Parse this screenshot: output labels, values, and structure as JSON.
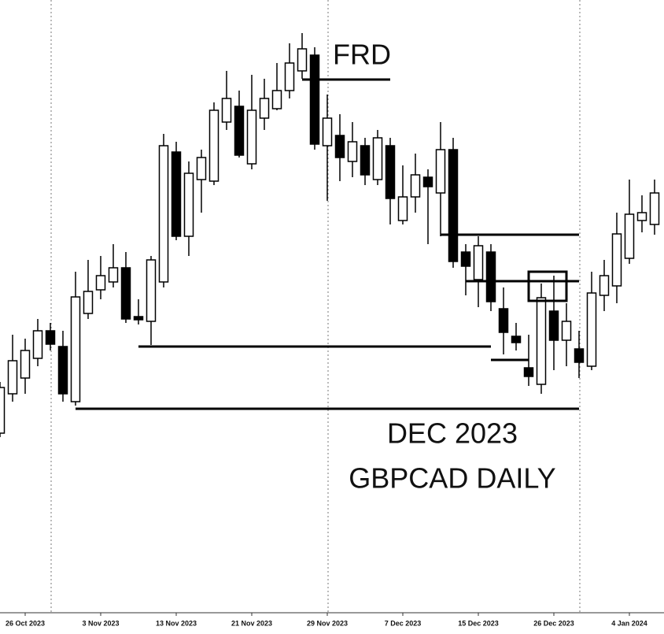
{
  "chart_data": {
    "type": "candlestick",
    "annotations": {
      "frd": "FRD",
      "month": "DEC 2023",
      "symbol": "GBPCAD DAILY"
    },
    "categories": [
      null,
      null,
      "26 Oct 2023",
      null,
      null,
      null,
      null,
      null,
      "3 Nov 2023",
      null,
      null,
      null,
      null,
      null,
      "13 Nov 2023",
      null,
      null,
      null,
      null,
      null,
      "21 Nov 2023",
      null,
      null,
      null,
      null,
      null,
      "29 Nov 2023",
      null,
      null,
      null,
      null,
      null,
      "7 Dec 2023",
      null,
      null,
      null,
      null,
      null,
      "15 Dec 2023",
      null,
      null,
      null,
      null,
      null,
      "26 Dec 2023",
      null,
      null,
      null,
      null,
      null,
      "4 Jan 2024",
      null,
      null
    ],
    "open": [
      1.675,
      1.68,
      1.682,
      1.6845,
      1.688,
      1.686,
      1.679,
      1.6902,
      1.6932,
      1.6942,
      1.696,
      1.6898,
      1.6892,
      1.6942,
      1.7107,
      1.7,
      1.7072,
      1.707,
      1.7145,
      1.7165,
      1.7092,
      1.715,
      1.7162,
      1.7185,
      1.721,
      1.723,
      1.7115,
      1.7128,
      1.7095,
      1.7115,
      1.7072,
      1.7115,
      1.702,
      1.705,
      1.7075,
      1.7055,
      1.711,
      1.698,
      1.6945,
      1.698,
      1.6908,
      1.6873,
      1.6833,
      1.6812,
      1.6905,
      1.6868,
      1.6857,
      1.6835,
      1.6925,
      1.6937,
      1.6972,
      1.702,
      1.7015
    ],
    "high": [
      1.6815,
      1.6875,
      1.687,
      1.6895,
      1.689,
      1.688,
      1.6955,
      1.697,
      1.6975,
      1.699,
      1.698,
      1.692,
      1.6975,
      1.713,
      1.712,
      1.7095,
      1.711,
      1.717,
      1.721,
      1.7185,
      1.7205,
      1.72,
      1.722,
      1.7245,
      1.7258,
      1.724,
      1.718,
      1.7155,
      1.7145,
      1.7125,
      1.7135,
      1.7125,
      1.709,
      1.7105,
      1.7085,
      1.7145,
      1.7125,
      1.699,
      1.7,
      1.699,
      1.6935,
      1.689,
      1.6875,
      1.694,
      1.695,
      1.6915,
      1.688,
      1.6955,
      1.697,
      1.703,
      1.7072,
      1.7052,
      1.7072
    ],
    "low": [
      1.6745,
      1.679,
      1.68,
      1.6835,
      1.6855,
      1.679,
      1.6785,
      1.6895,
      1.692,
      1.6935,
      1.689,
      1.6888,
      1.6862,
      1.6935,
      1.6995,
      1.6975,
      1.703,
      1.7065,
      1.7135,
      1.71,
      1.7085,
      1.7135,
      1.716,
      1.7175,
      1.72,
      1.711,
      1.7045,
      1.707,
      1.7075,
      1.7065,
      1.7065,
      1.7015,
      1.7015,
      1.703,
      1.699,
      1.7,
      1.696,
      1.6925,
      1.691,
      1.6905,
      1.685,
      1.6855,
      1.681,
      1.68,
      1.683,
      1.6835,
      1.682,
      1.683,
      1.6905,
      1.6915,
      1.6965,
      1.7005,
      1.7002
    ],
    "close": [
      1.6808,
      1.6842,
      1.6855,
      1.688,
      1.6863,
      1.68,
      1.6923,
      1.693,
      1.695,
      1.696,
      1.6895,
      1.6894,
      1.697,
      1.7115,
      1.7,
      1.708,
      1.71,
      1.716,
      1.7175,
      1.7103,
      1.716,
      1.7175,
      1.7185,
      1.722,
      1.7238,
      1.7117,
      1.715,
      1.71,
      1.712,
      1.7078,
      1.7125,
      1.7048,
      1.705,
      1.7078,
      1.7063,
      1.711,
      1.6968,
      1.6962,
      1.6988,
      1.6917,
      1.6878,
      1.6865,
      1.6822,
      1.6922,
      1.6868,
      1.6892,
      1.684,
      1.6928,
      1.695,
      1.7003,
      1.7028,
      1.703,
      1.7055
    ],
    "up_color": "#ffffff",
    "down_color": "#000000",
    "line_color": "#000000",
    "ylim": [
      1.6524,
      1.73
    ],
    "separators": [
      4,
      26,
      46
    ],
    "levels": [
      {
        "value": 1.7199,
        "span": [
          24,
          31
        ]
      },
      {
        "value": 1.7002,
        "span": [
          35,
          46
        ]
      },
      {
        "value": 1.6943,
        "span": [
          37,
          46
        ]
      },
      {
        "value": 1.686,
        "span": [
          11,
          39
        ]
      },
      {
        "value": 1.6843,
        "span": [
          39,
          42
        ]
      },
      {
        "value": 1.6781,
        "span": [
          6,
          46
        ]
      }
    ],
    "box": {
      "top": 1.6955,
      "bottom": 1.6918,
      "span": [
        42,
        45
      ]
    }
  }
}
